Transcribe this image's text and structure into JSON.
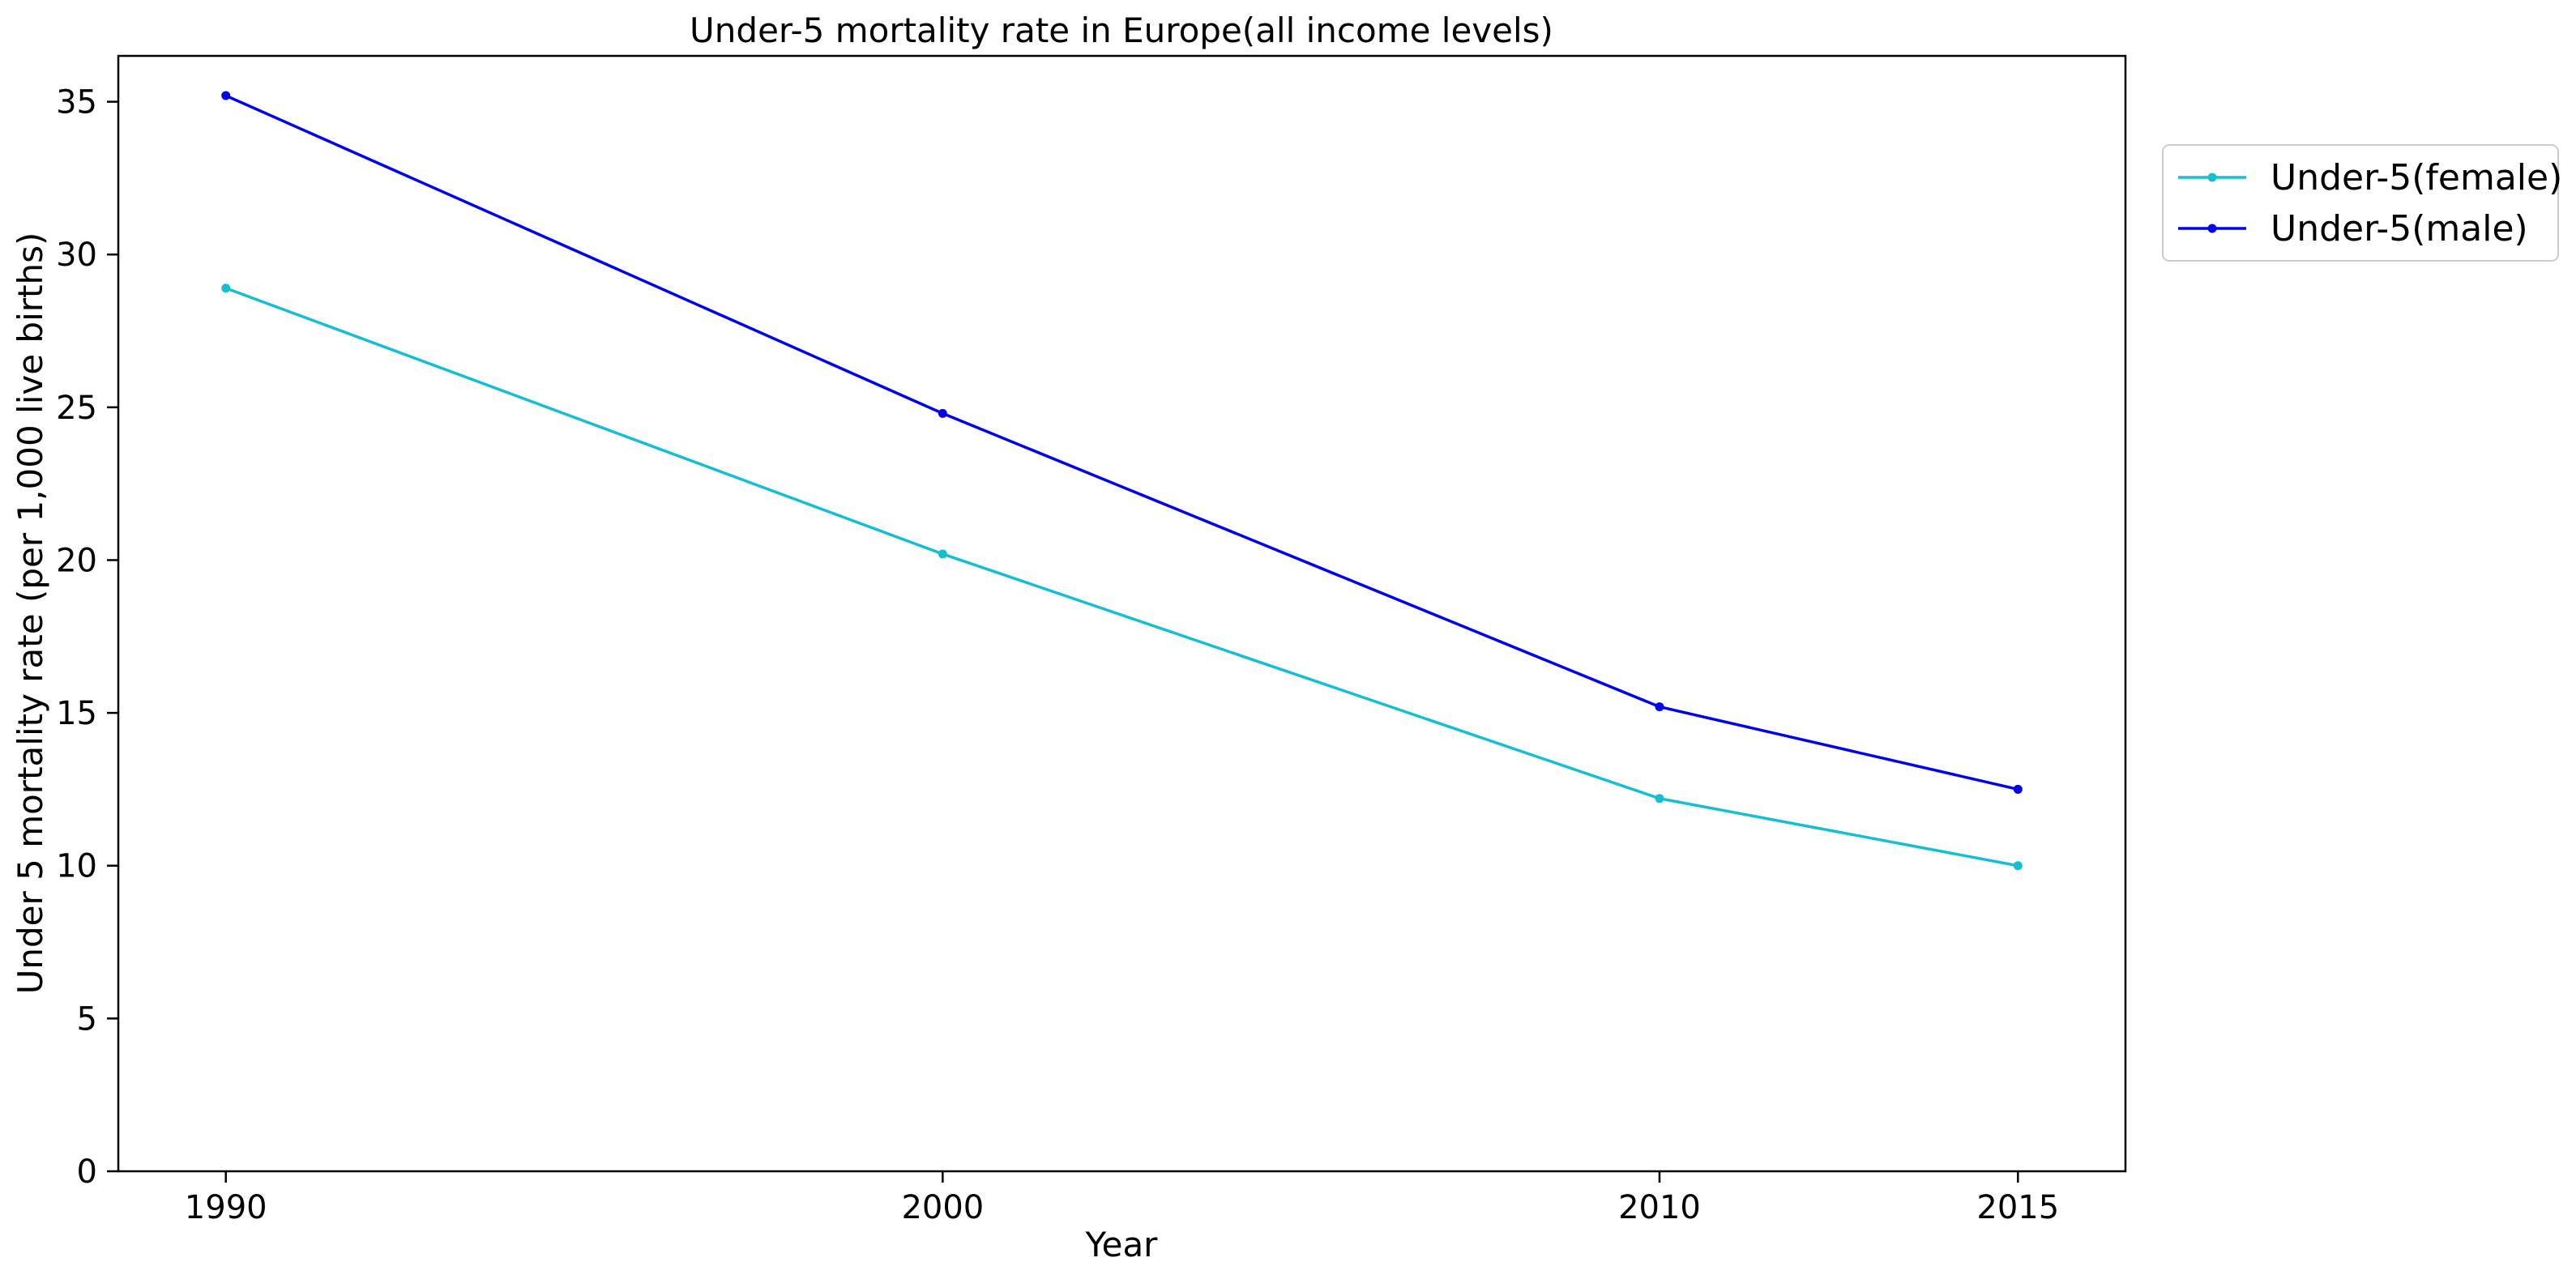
{
  "chart_data": {
    "type": "line",
    "title": "Under-5 mortality rate in Europe(all income levels)",
    "xlabel": "Year",
    "ylabel": "Under 5 mortality rate (per 1,000 live births)",
    "x": [
      1990,
      2000,
      2010,
      2015
    ],
    "x_tick_labels": [
      "1990",
      "2000",
      "2010",
      "2015"
    ],
    "y_ticks": [
      0,
      5,
      10,
      15,
      20,
      25,
      30,
      35
    ],
    "ylim": [
      0,
      36.5
    ],
    "xlim": [
      1988.5,
      2016.5
    ],
    "grid": false,
    "legend_placement": "outside-top-right",
    "series": [
      {
        "name": "Under-5(female)",
        "color": "#17becf",
        "marker": "circle",
        "values": [
          28.9,
          20.2,
          12.2,
          10.0
        ]
      },
      {
        "name": "Under-5(male)",
        "color": "#0000ee",
        "marker": "circle",
        "values": [
          35.2,
          24.8,
          15.2,
          12.5
        ]
      }
    ]
  }
}
